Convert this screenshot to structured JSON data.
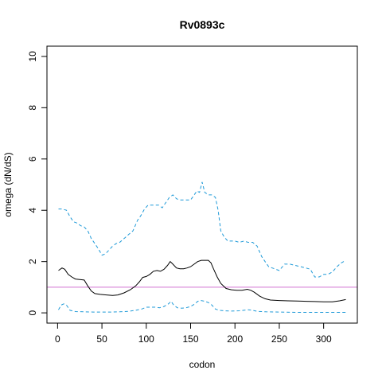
{
  "chart_data": {
    "type": "line",
    "title": "Rv0893c",
    "xlabel": "codon",
    "ylabel": "omega (dN/dS)",
    "xlim": [
      -12,
      338
    ],
    "ylim": [
      -0.4,
      10.4
    ],
    "xticks": [
      0,
      50,
      100,
      150,
      200,
      250,
      300
    ],
    "yticks": [
      0,
      2,
      4,
      6,
      8,
      10
    ],
    "grid": false,
    "reference_line": {
      "y": 1,
      "color": "#d070d0"
    },
    "series": [
      {
        "role": "estimate",
        "color": "#000000",
        "style": "solid",
        "x": [
          1,
          5,
          8,
          12,
          16,
          20,
          25,
          30,
          34,
          38,
          42,
          48,
          55,
          62,
          68,
          75,
          82,
          88,
          92,
          96,
          100,
          104,
          108,
          112,
          116,
          120,
          124,
          127,
          130,
          134,
          138,
          142,
          146,
          150,
          154,
          158,
          162,
          166,
          170,
          173,
          176,
          180,
          184,
          190,
          196,
          202,
          208,
          214,
          218,
          222,
          228,
          234,
          240,
          250,
          260,
          270,
          280,
          290,
          300,
          310,
          318,
          325
        ],
        "y": [
          1.65,
          1.75,
          1.7,
          1.5,
          1.4,
          1.32,
          1.3,
          1.28,
          1.05,
          0.85,
          0.75,
          0.72,
          0.7,
          0.68,
          0.7,
          0.78,
          0.9,
          1.05,
          1.2,
          1.38,
          1.42,
          1.5,
          1.62,
          1.65,
          1.62,
          1.7,
          1.85,
          2.0,
          1.9,
          1.75,
          1.72,
          1.72,
          1.75,
          1.8,
          1.9,
          2.0,
          2.05,
          2.05,
          2.05,
          1.95,
          1.7,
          1.4,
          1.15,
          0.95,
          0.9,
          0.88,
          0.88,
          0.92,
          0.88,
          0.8,
          0.65,
          0.55,
          0.5,
          0.48,
          0.47,
          0.46,
          0.45,
          0.44,
          0.43,
          0.43,
          0.47,
          0.52
        ]
      },
      {
        "role": "upper bound",
        "color": "#1f9ad8",
        "style": "dashed",
        "x": [
          1,
          5,
          10,
          14,
          18,
          22,
          26,
          30,
          34,
          38,
          42,
          46,
          50,
          54,
          58,
          62,
          66,
          70,
          75,
          80,
          85,
          90,
          94,
          98,
          102,
          106,
          110,
          114,
          118,
          122,
          126,
          130,
          134,
          138,
          142,
          146,
          150,
          154,
          157,
          160,
          163,
          166,
          170,
          174,
          178,
          181,
          184,
          188,
          192,
          196,
          200,
          205,
          210,
          215,
          220,
          225,
          230,
          234,
          238,
          242,
          246,
          250,
          256,
          262,
          268,
          274,
          280,
          285,
          290,
          295,
          300,
          305,
          310,
          315,
          320,
          325
        ],
        "y": [
          4.05,
          4.05,
          4.0,
          3.75,
          3.55,
          3.5,
          3.4,
          3.35,
          3.2,
          2.9,
          2.7,
          2.5,
          2.25,
          2.3,
          2.45,
          2.6,
          2.7,
          2.75,
          2.9,
          3.05,
          3.2,
          3.6,
          3.8,
          4.05,
          4.2,
          4.2,
          4.2,
          4.2,
          4.1,
          4.3,
          4.5,
          4.6,
          4.45,
          4.4,
          4.4,
          4.4,
          4.4,
          4.6,
          4.75,
          4.7,
          5.1,
          4.7,
          4.6,
          4.6,
          4.5,
          4.0,
          3.2,
          2.95,
          2.8,
          2.8,
          2.8,
          2.75,
          2.8,
          2.75,
          2.75,
          2.6,
          2.2,
          2.0,
          1.8,
          1.75,
          1.7,
          1.65,
          1.9,
          1.9,
          1.85,
          1.8,
          1.75,
          1.7,
          1.4,
          1.4,
          1.5,
          1.5,
          1.6,
          1.8,
          1.95,
          2.05
        ]
      },
      {
        "role": "lower bound",
        "color": "#1f9ad8",
        "style": "dashed",
        "x": [
          1,
          4,
          7,
          10,
          14,
          20,
          30,
          40,
          50,
          60,
          70,
          80,
          88,
          95,
          100,
          105,
          110,
          115,
          120,
          125,
          128,
          131,
          135,
          140,
          145,
          150,
          155,
          158,
          162,
          166,
          170,
          174,
          178,
          182,
          188,
          195,
          205,
          215,
          220,
          225,
          235,
          250,
          270,
          290,
          310,
          325
        ],
        "y": [
          0.12,
          0.3,
          0.35,
          0.3,
          0.1,
          0.05,
          0.04,
          0.03,
          0.03,
          0.03,
          0.04,
          0.06,
          0.1,
          0.15,
          0.22,
          0.22,
          0.22,
          0.2,
          0.25,
          0.35,
          0.45,
          0.3,
          0.2,
          0.18,
          0.2,
          0.25,
          0.35,
          0.45,
          0.48,
          0.45,
          0.4,
          0.3,
          0.15,
          0.1,
          0.08,
          0.07,
          0.08,
          0.12,
          0.1,
          0.06,
          0.04,
          0.03,
          0.02,
          0.02,
          0.02,
          0.02
        ]
      }
    ]
  }
}
